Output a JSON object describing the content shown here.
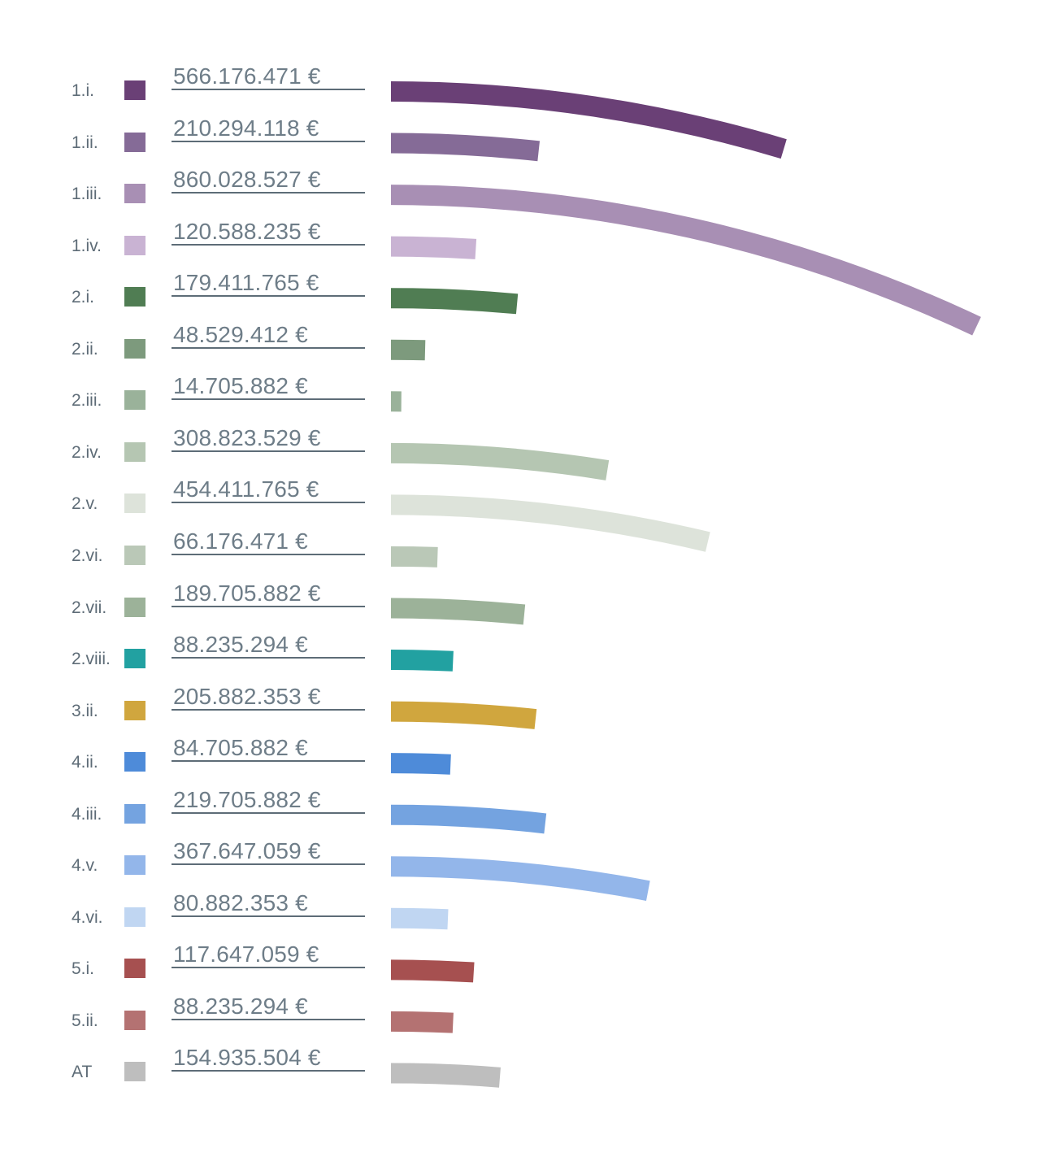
{
  "chart_data": {
    "type": "bar",
    "variant": "horizontal-arc-bars",
    "title": "",
    "unit": "EUR",
    "grid": false,
    "legend_position": "left",
    "text_color": "#6e7d88",
    "underline_color": "#5d6c77",
    "categories": [
      "1.i.",
      "1.ii.",
      "1.iii.",
      "1.iv.",
      "2.i.",
      "2.ii.",
      "2.iii.",
      "2.iv.",
      "2.v.",
      "2.vi.",
      "2.vii.",
      "2.viii.",
      "3.ii.",
      "4.ii.",
      "4.iii.",
      "4.v.",
      "4.vi.",
      "5.i.",
      "5.ii.",
      "AT"
    ],
    "values": [
      566176471,
      210294118,
      860028527,
      120588235,
      179411765,
      48529412,
      14705882,
      308823529,
      454411765,
      66176471,
      189705882,
      88235294,
      205882353,
      84705882,
      219705882,
      367647059,
      80882353,
      117647059,
      88235294,
      154935504
    ],
    "value_labels": [
      "566.176.471 €",
      "210.294.118 €",
      "860.028.527 €",
      "120.588.235 €",
      "179.411.765 €",
      "48.529.412 €",
      "14.705.882 €",
      "308.823.529 €",
      "454.411.765 €",
      "66.176.471 €",
      "189.705.882 €",
      "88.235.294 €",
      "205.882.353 €",
      "84.705.882 €",
      "219.705.882 €",
      "367.647.059 €",
      "80.882.353 €",
      "117.647.059 €",
      "88.235.294 €",
      "154.935.504 €"
    ],
    "colors": [
      "#6a4076",
      "#856b97",
      "#a88fb4",
      "#c9b3d3",
      "#507d53",
      "#7d9a7d",
      "#9ab29a",
      "#b5c6b2",
      "#dde3da",
      "#bac8b7",
      "#9cb299",
      "#22a1a1",
      "#d0a63e",
      "#4e8bd9",
      "#74a3e0",
      "#93b6ea",
      "#c0d6f2",
      "#a65050",
      "#b47272",
      "#bebebe"
    ],
    "xlim": [
      0,
      900000000
    ]
  }
}
